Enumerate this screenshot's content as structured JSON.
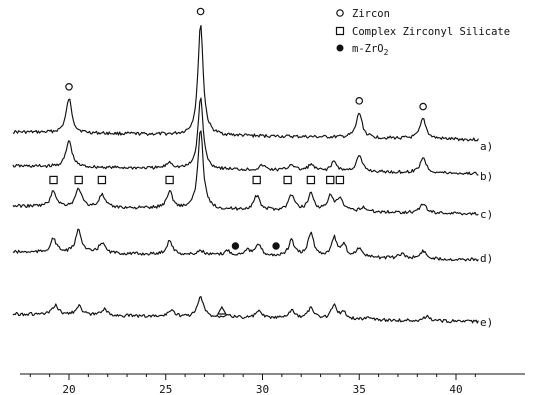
{
  "chart_data": {
    "type": "line",
    "title": "",
    "xlabel": "",
    "ylabel": "",
    "xlim": [
      17,
      42
    ],
    "x_ticks": [
      20,
      25,
      30,
      35,
      40
    ],
    "grid": false,
    "legend": {
      "placement": "top-right",
      "items": [
        {
          "marker": "circle-open",
          "label": "Zircon"
        },
        {
          "marker": "square-open",
          "label": "Complex Zirconyl Silicate"
        },
        {
          "marker": "circle-filled",
          "label": "m-ZrO2"
        }
      ]
    },
    "series": [
      {
        "name": "a)",
        "peaks": [
          [
            20.0,
            1.1
          ],
          [
            26.8,
            3.6
          ],
          [
            35.0,
            0.8
          ],
          [
            38.3,
            0.65
          ]
        ],
        "markers": [
          {
            "symbol": "circle-open",
            "x": 20.0
          },
          {
            "symbol": "circle-open",
            "x": 26.8
          },
          {
            "symbol": "circle-open",
            "x": 35.0
          },
          {
            "symbol": "circle-open",
            "x": 38.3
          }
        ]
      },
      {
        "name": "b)",
        "peaks": [
          [
            20.0,
            0.85
          ],
          [
            25.2,
            0.2
          ],
          [
            26.8,
            2.3
          ],
          [
            30.0,
            0.15
          ],
          [
            31.5,
            0.2
          ],
          [
            32.5,
            0.2
          ],
          [
            33.7,
            0.3
          ],
          [
            35.0,
            0.5
          ],
          [
            38.3,
            0.5
          ]
        ],
        "markers": []
      },
      {
        "name": "c)",
        "peaks": [
          [
            19.2,
            0.5
          ],
          [
            20.5,
            0.6
          ],
          [
            21.7,
            0.4
          ],
          [
            25.2,
            0.55
          ],
          [
            26.8,
            2.6
          ],
          [
            29.7,
            0.45
          ],
          [
            31.5,
            0.5
          ],
          [
            32.5,
            0.55
          ],
          [
            33.5,
            0.45
          ],
          [
            34.0,
            0.4
          ],
          [
            35.2,
            0.15
          ],
          [
            38.3,
            0.3
          ]
        ],
        "markers": [
          {
            "symbol": "square-open",
            "x": 19.2
          },
          {
            "symbol": "square-open",
            "x": 20.5
          },
          {
            "symbol": "square-open",
            "x": 21.7
          },
          {
            "symbol": "square-open",
            "x": 25.2
          },
          {
            "symbol": "square-open",
            "x": 29.7
          },
          {
            "symbol": "square-open",
            "x": 31.3
          },
          {
            "symbol": "square-open",
            "x": 32.5
          },
          {
            "symbol": "square-open",
            "x": 33.5
          },
          {
            "symbol": "square-open",
            "x": 34.0
          }
        ]
      },
      {
        "name": "d)",
        "peaks": [
          [
            19.2,
            0.45
          ],
          [
            20.5,
            0.75
          ],
          [
            21.7,
            0.35
          ],
          [
            25.2,
            0.45
          ],
          [
            26.8,
            0.15
          ],
          [
            28.2,
            0.15
          ],
          [
            29.2,
            0.2
          ],
          [
            29.8,
            0.35
          ],
          [
            31.5,
            0.5
          ],
          [
            32.5,
            0.75
          ],
          [
            33.7,
            0.6
          ],
          [
            34.2,
            0.35
          ],
          [
            35.0,
            0.3
          ],
          [
            37.2,
            0.15
          ],
          [
            38.3,
            0.25
          ]
        ],
        "markers": [
          {
            "symbol": "circle-filled",
            "x": 28.6
          },
          {
            "symbol": "circle-filled",
            "x": 30.7
          }
        ]
      },
      {
        "name": "e)",
        "peaks": [
          [
            19.3,
            0.3
          ],
          [
            20.5,
            0.3
          ],
          [
            21.8,
            0.2
          ],
          [
            25.3,
            0.22
          ],
          [
            26.8,
            0.65
          ],
          [
            28.2,
            0.12
          ],
          [
            29.8,
            0.22
          ],
          [
            31.5,
            0.25
          ],
          [
            32.5,
            0.35
          ],
          [
            33.7,
            0.45
          ],
          [
            34.2,
            0.2
          ],
          [
            35.5,
            0.1
          ],
          [
            38.5,
            0.15
          ]
        ],
        "markers": [
          {
            "symbol": "triangle-open",
            "x": 27.9
          }
        ]
      }
    ]
  }
}
